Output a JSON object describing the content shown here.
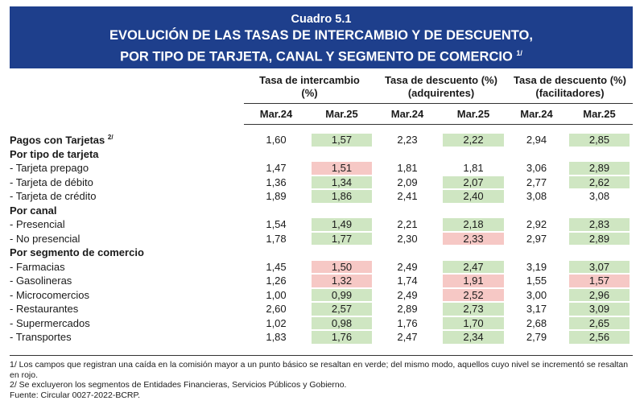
{
  "header": {
    "cuadro": "Cuadro 5.1",
    "title_line1": "EVOLUCIÓN DE LAS TASAS DE INTERCAMBIO Y DE DESCUENTO,",
    "title_line2": "POR TIPO DE TARJETA, CANAL Y SEGMENTO DE COMERCIO",
    "title_note": "1/"
  },
  "table": {
    "groups": [
      {
        "line1": "Tasa de intercambio",
        "line2": "(%)"
      },
      {
        "line1": "Tasa de descuento (%)",
        "line2": "(adquirentes)"
      },
      {
        "line1": "Tasa de descuento (%)",
        "line2": "(facilitadores)"
      }
    ],
    "periods": [
      "Mar.24",
      "Mar.25",
      "Mar.24",
      "Mar.25",
      "Mar.24",
      "Mar.25"
    ],
    "rows": [
      {
        "type": "data",
        "bold": true,
        "label": "Pagos con Tarjetas",
        "note": "2/",
        "values": [
          "1,60",
          "1,57",
          "2,23",
          "2,22",
          "2,94",
          "2,85"
        ],
        "colors": [
          "n",
          "g",
          "n",
          "g",
          "n",
          "g"
        ]
      },
      {
        "type": "category",
        "label": "Por tipo de tarjeta"
      },
      {
        "type": "data",
        "label": "- Tarjeta prepago",
        "values": [
          "1,47",
          "1,51",
          "1,81",
          "1,81",
          "3,06",
          "2,89"
        ],
        "colors": [
          "n",
          "r",
          "n",
          "n",
          "n",
          "g"
        ]
      },
      {
        "type": "data",
        "label": "- Tarjeta de débito",
        "values": [
          "1,36",
          "1,34",
          "2,09",
          "2,07",
          "2,77",
          "2,62"
        ],
        "colors": [
          "n",
          "g",
          "n",
          "g",
          "n",
          "g"
        ]
      },
      {
        "type": "data",
        "label": "- Tarjeta de crédito",
        "values": [
          "1,89",
          "1,86",
          "2,41",
          "2,40",
          "3,08",
          "3,08"
        ],
        "colors": [
          "n",
          "g",
          "n",
          "g",
          "n",
          "n"
        ]
      },
      {
        "type": "category",
        "label": "Por canal"
      },
      {
        "type": "data",
        "label": "- Presencial",
        "values": [
          "1,54",
          "1,49",
          "2,21",
          "2,18",
          "2,92",
          "2,83"
        ],
        "colors": [
          "n",
          "g",
          "n",
          "g",
          "n",
          "g"
        ]
      },
      {
        "type": "data",
        "label": "- No presencial",
        "values": [
          "1,78",
          "1,77",
          "2,30",
          "2,33",
          "2,97",
          "2,89"
        ],
        "colors": [
          "n",
          "g",
          "n",
          "r",
          "n",
          "g"
        ]
      },
      {
        "type": "category",
        "label": "Por segmento de comercio"
      },
      {
        "type": "data",
        "label": "- Farmacias",
        "values": [
          "1,45",
          "1,50",
          "2,49",
          "2,47",
          "3,19",
          "3,07"
        ],
        "colors": [
          "n",
          "r",
          "n",
          "g",
          "n",
          "g"
        ]
      },
      {
        "type": "data",
        "label": "- Gasolineras",
        "values": [
          "1,26",
          "1,32",
          "1,74",
          "1,91",
          "1,55",
          "1,57"
        ],
        "colors": [
          "n",
          "r",
          "n",
          "r",
          "n",
          "r"
        ]
      },
      {
        "type": "data",
        "label": "- Microcomercios",
        "values": [
          "1,00",
          "0,99",
          "2,49",
          "2,52",
          "3,00",
          "2,96"
        ],
        "colors": [
          "n",
          "g",
          "n",
          "r",
          "n",
          "g"
        ]
      },
      {
        "type": "data",
        "label": "- Restaurantes",
        "values": [
          "2,60",
          "2,57",
          "2,89",
          "2,73",
          "3,17",
          "3,09"
        ],
        "colors": [
          "n",
          "g",
          "n",
          "g",
          "n",
          "g"
        ]
      },
      {
        "type": "data",
        "label": "- Supermercados",
        "values": [
          "1,02",
          "0,98",
          "1,76",
          "1,70",
          "2,68",
          "2,65"
        ],
        "colors": [
          "n",
          "g",
          "n",
          "g",
          "n",
          "g"
        ]
      },
      {
        "type": "data",
        "label": "- Transportes",
        "values": [
          "1,83",
          "1,76",
          "2,47",
          "2,34",
          "2,79",
          "2,56"
        ],
        "colors": [
          "n",
          "g",
          "n",
          "g",
          "n",
          "g"
        ]
      }
    ]
  },
  "colors": {
    "header_bg": "#1e3f8c",
    "green_cell": "#cfe6c2",
    "red_cell": "#f6c8c5"
  },
  "notes": {
    "n1": "1/ Los campos que registran una caída en la comisión mayor a un punto básico se resaltan en verde; del mismo modo, aquellos cuyo nivel se incrementó se resaltan en rojo.",
    "n2": "2/ Se excluyeron los segmentos de Entidades Financieras, Servicios Públicos y Gobierno.",
    "source": "Fuente: Circular 0027-2022-BCRP."
  }
}
